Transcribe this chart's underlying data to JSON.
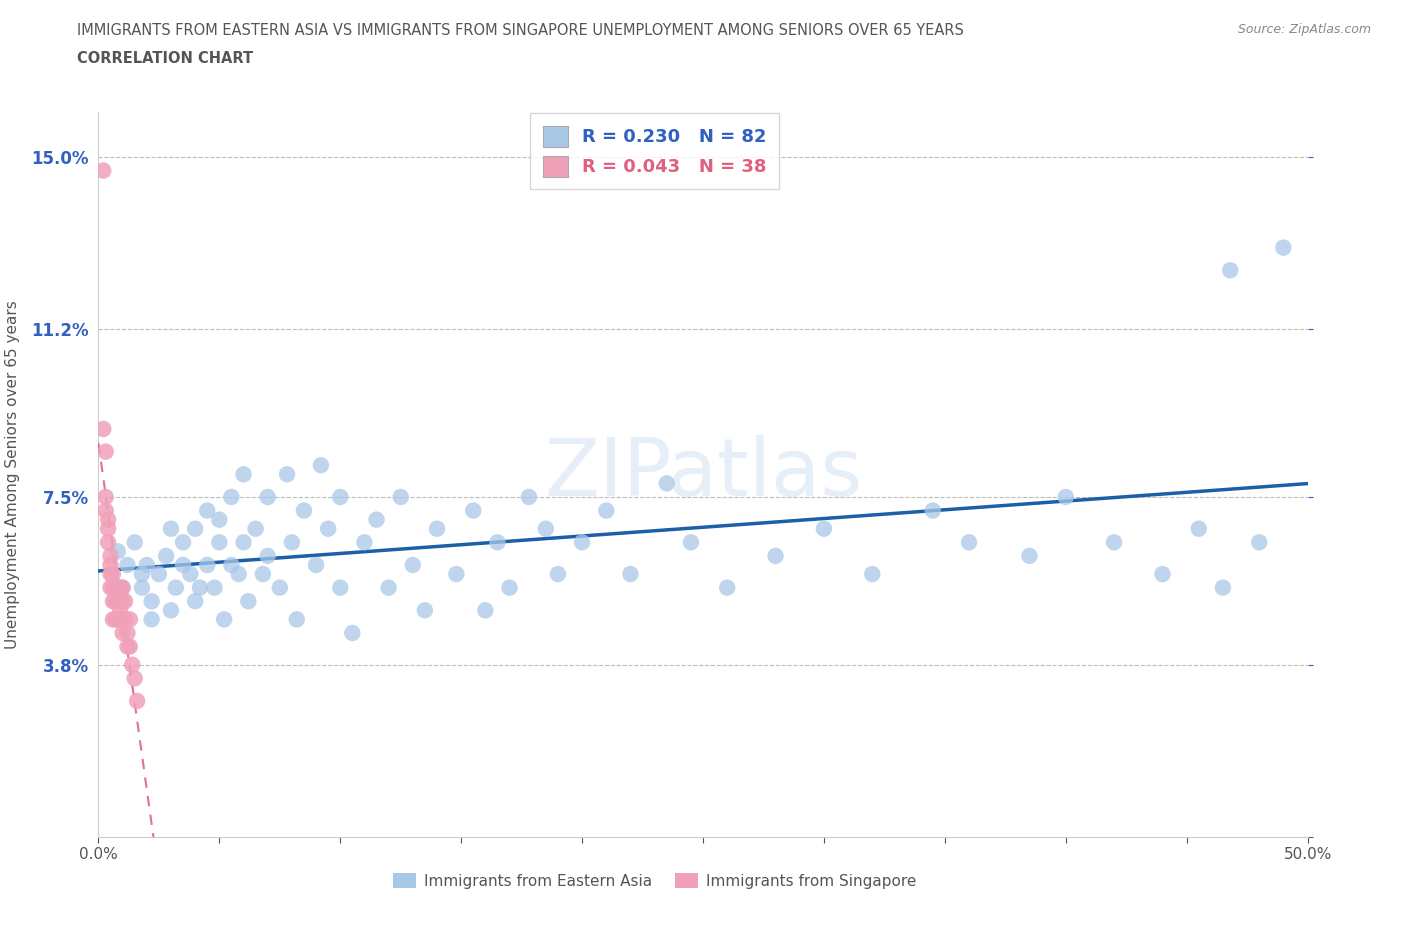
{
  "title_line1": "IMMIGRANTS FROM EASTERN ASIA VS IMMIGRANTS FROM SINGAPORE UNEMPLOYMENT AMONG SENIORS OVER 65 YEARS",
  "title_line2": "CORRELATION CHART",
  "source_text": "Source: ZipAtlas.com",
  "ylabel": "Unemployment Among Seniors over 65 years",
  "xlim": [
    0.0,
    0.5
  ],
  "ylim": [
    0.0,
    0.16
  ],
  "xtick_vals": [
    0.0,
    0.05,
    0.1,
    0.15,
    0.2,
    0.25,
    0.3,
    0.35,
    0.4,
    0.45,
    0.5
  ],
  "ytick_vals": [
    0.0,
    0.038,
    0.075,
    0.112,
    0.15
  ],
  "ytick_labels": [
    "",
    "3.8%",
    "7.5%",
    "11.2%",
    "15.0%"
  ],
  "R_eastern": 0.23,
  "N_eastern": 82,
  "R_singapore": 0.043,
  "N_singapore": 38,
  "color_eastern": "#a8c8e8",
  "color_singapore": "#f0a0b8",
  "line_color_eastern": "#1a5fa8",
  "line_color_singapore": "#e06080",
  "axis_color": "#3060c0",
  "title_color": "#444444",
  "eastern_asia_x": [
    0.008,
    0.01,
    0.012,
    0.015,
    0.018,
    0.018,
    0.02,
    0.022,
    0.022,
    0.025,
    0.028,
    0.03,
    0.03,
    0.032,
    0.035,
    0.035,
    0.038,
    0.04,
    0.04,
    0.042,
    0.045,
    0.045,
    0.048,
    0.05,
    0.05,
    0.052,
    0.055,
    0.055,
    0.058,
    0.06,
    0.06,
    0.062,
    0.065,
    0.068,
    0.07,
    0.07,
    0.075,
    0.078,
    0.08,
    0.082,
    0.085,
    0.09,
    0.092,
    0.095,
    0.1,
    0.1,
    0.105,
    0.11,
    0.115,
    0.12,
    0.125,
    0.13,
    0.135,
    0.14,
    0.148,
    0.155,
    0.16,
    0.165,
    0.17,
    0.178,
    0.185,
    0.19,
    0.2,
    0.21,
    0.22,
    0.235,
    0.245,
    0.26,
    0.28,
    0.3,
    0.32,
    0.345,
    0.36,
    0.385,
    0.4,
    0.42,
    0.44,
    0.455,
    0.465,
    0.48,
    0.468,
    0.49
  ],
  "eastern_asia_y": [
    0.063,
    0.055,
    0.06,
    0.065,
    0.055,
    0.058,
    0.06,
    0.048,
    0.052,
    0.058,
    0.062,
    0.05,
    0.068,
    0.055,
    0.06,
    0.065,
    0.058,
    0.052,
    0.068,
    0.055,
    0.072,
    0.06,
    0.055,
    0.065,
    0.07,
    0.048,
    0.06,
    0.075,
    0.058,
    0.065,
    0.08,
    0.052,
    0.068,
    0.058,
    0.075,
    0.062,
    0.055,
    0.08,
    0.065,
    0.048,
    0.072,
    0.06,
    0.082,
    0.068,
    0.055,
    0.075,
    0.045,
    0.065,
    0.07,
    0.055,
    0.075,
    0.06,
    0.05,
    0.068,
    0.058,
    0.072,
    0.05,
    0.065,
    0.055,
    0.075,
    0.068,
    0.058,
    0.065,
    0.072,
    0.058,
    0.078,
    0.065,
    0.055,
    0.062,
    0.068,
    0.058,
    0.072,
    0.065,
    0.062,
    0.075,
    0.065,
    0.058,
    0.068,
    0.055,
    0.065,
    0.125,
    0.13
  ],
  "singapore_x": [
    0.002,
    0.002,
    0.003,
    0.003,
    0.003,
    0.004,
    0.004,
    0.004,
    0.005,
    0.005,
    0.005,
    0.005,
    0.006,
    0.006,
    0.006,
    0.006,
    0.007,
    0.007,
    0.007,
    0.008,
    0.008,
    0.008,
    0.009,
    0.009,
    0.009,
    0.01,
    0.01,
    0.01,
    0.01,
    0.011,
    0.011,
    0.012,
    0.012,
    0.013,
    0.013,
    0.014,
    0.015,
    0.016
  ],
  "singapore_y": [
    0.147,
    0.09,
    0.085,
    0.075,
    0.072,
    0.07,
    0.068,
    0.065,
    0.062,
    0.06,
    0.058,
    0.055,
    0.058,
    0.055,
    0.052,
    0.048,
    0.055,
    0.052,
    0.048,
    0.055,
    0.052,
    0.048,
    0.055,
    0.05,
    0.048,
    0.055,
    0.052,
    0.048,
    0.045,
    0.052,
    0.048,
    0.045,
    0.042,
    0.048,
    0.042,
    0.038,
    0.035,
    0.03
  ],
  "sg_line_x_start": 0.0,
  "sg_line_x_end": 0.5,
  "blue_line_y_start": 0.046,
  "blue_line_y_end": 0.072
}
